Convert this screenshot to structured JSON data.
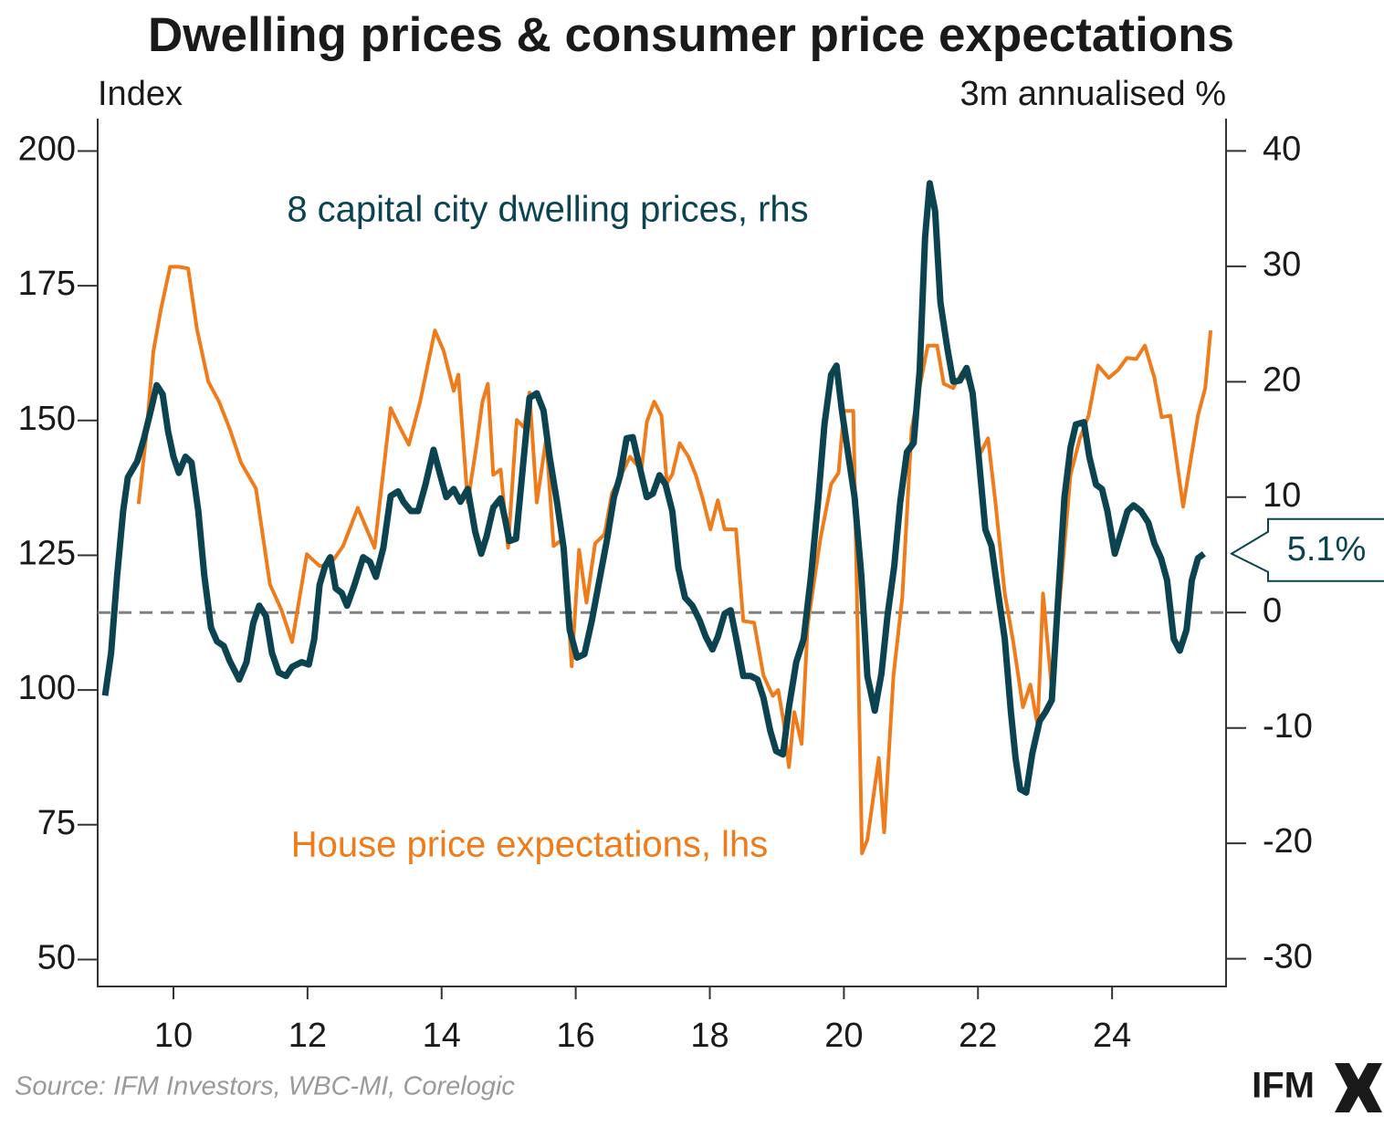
{
  "chart_data": {
    "type": "line",
    "title": "Dwelling prices & consumer price expectations",
    "ylabel": "Index",
    "y2label": "3m annualised %",
    "source": "Source: IFM Investors, WBC-MI, Corelogic",
    "brand": "IFM",
    "xlim": [
      8.87,
      25.7
    ],
    "xticks": [
      10,
      12,
      14,
      16,
      18,
      20,
      22,
      24
    ],
    "ylim": [
      45,
      206
    ],
    "yticks": [
      50,
      75,
      100,
      125,
      150,
      175,
      200
    ],
    "y2lim": [
      -32.4,
      42.8
    ],
    "y2ticks": [
      -30,
      -20,
      -10,
      0,
      10,
      20,
      30,
      40
    ],
    "reference_line": {
      "axis": "y2",
      "value": 0,
      "color": "#808080"
    },
    "callout": {
      "value": 5.1,
      "label": "5.1%",
      "color": "#0b4450"
    },
    "series": [
      {
        "name": "House price expectations, lhs",
        "color": "#f07b1a",
        "axis": "y",
        "x": [
          9.48,
          9.59,
          9.7,
          9.81,
          9.95,
          10.08,
          10.22,
          10.35,
          10.52,
          10.68,
          10.84,
          11.01,
          11.23,
          11.44,
          11.61,
          11.77,
          11.99,
          12.18,
          12.34,
          12.53,
          12.75,
          13.0,
          13.24,
          13.38,
          13.51,
          13.68,
          13.9,
          14.03,
          14.18,
          14.25,
          14.39,
          14.52,
          14.61,
          14.69,
          14.77,
          14.88,
          14.99,
          15.12,
          15.23,
          15.31,
          15.42,
          15.56,
          15.67,
          15.82,
          15.94,
          16.05,
          16.16,
          16.29,
          16.43,
          16.54,
          16.68,
          16.81,
          16.98,
          17.06,
          17.17,
          17.28,
          17.36,
          17.44,
          17.55,
          17.68,
          17.79,
          17.9,
          18.01,
          18.12,
          18.22,
          18.39,
          18.5,
          18.66,
          18.8,
          18.94,
          19.02,
          19.1,
          19.18,
          19.26,
          19.37,
          19.46,
          19.65,
          19.81,
          19.92,
          20.0,
          20.14,
          20.27,
          20.35,
          20.52,
          20.6,
          20.74,
          20.87,
          21.01,
          21.14,
          21.25,
          21.39,
          21.49,
          21.63,
          21.76,
          21.9,
          22.01,
          22.15,
          22.26,
          22.4,
          22.53,
          22.67,
          22.78,
          22.89,
          22.97,
          23.1,
          23.24,
          23.38,
          23.52,
          23.65,
          23.79,
          23.95,
          24.09,
          24.22,
          24.36,
          24.49,
          24.63,
          24.74,
          24.87,
          25.06,
          25.17,
          25.28,
          25.39,
          25.47
        ],
        "values": [
          134.5,
          146.7,
          162.8,
          170.4,
          178.5,
          178.5,
          178.2,
          167.0,
          157.2,
          153.5,
          148.4,
          142.1,
          137.4,
          119.6,
          114.9,
          108.9,
          125.2,
          123.0,
          123.3,
          126.7,
          133.8,
          126.4,
          152.3,
          148.7,
          145.5,
          153.5,
          166.7,
          162.9,
          155.5,
          158.5,
          134.8,
          145.3,
          153.5,
          156.8,
          139.9,
          140.9,
          126.4,
          150.1,
          148.7,
          155.2,
          134.8,
          146.7,
          126.7,
          128.1,
          104.4,
          126.0,
          116.2,
          127.2,
          128.9,
          136.5,
          139.9,
          143.3,
          140.8,
          149.7,
          153.5,
          150.9,
          138.3,
          140.0,
          145.8,
          143.3,
          139.9,
          135.2,
          129.8,
          135.2,
          129.8,
          129.8,
          112.8,
          112.5,
          102.7,
          98.9,
          100.0,
          94.2,
          85.7,
          95.9,
          90.0,
          112.0,
          128.1,
          138.2,
          140.3,
          151.8,
          151.8,
          69.7,
          72.2,
          87.4,
          73.6,
          102.7,
          117.1,
          148.4,
          156.8,
          163.9,
          163.9,
          156.8,
          156.0,
          158.9,
          156.8,
          143.3,
          146.7,
          134.8,
          117.9,
          108.6,
          96.8,
          101.0,
          93.4,
          117.9,
          100.2,
          119.6,
          139.9,
          146.7,
          150.9,
          160.2,
          157.9,
          159.4,
          161.6,
          161.4,
          163.9,
          158.0,
          150.6,
          150.9,
          134.0,
          142.5,
          150.9,
          156.0,
          166.7
        ]
      },
      {
        "name": "8 capital city dwelling prices, rhs",
        "color": "#0b4450",
        "axis": "y2",
        "x": [
          8.98,
          9.07,
          9.16,
          9.25,
          9.32,
          9.46,
          9.56,
          9.67,
          9.75,
          9.84,
          9.92,
          10.0,
          10.08,
          10.18,
          10.27,
          10.37,
          10.46,
          10.56,
          10.65,
          10.75,
          10.84,
          10.98,
          11.09,
          11.19,
          11.28,
          11.38,
          11.47,
          11.57,
          11.68,
          11.77,
          11.91,
          12.02,
          12.1,
          12.18,
          12.26,
          12.34,
          12.42,
          12.51,
          12.59,
          12.7,
          12.83,
          12.93,
          13.02,
          13.13,
          13.24,
          13.35,
          13.43,
          13.54,
          13.65,
          13.76,
          13.88,
          13.98,
          14.07,
          14.18,
          14.28,
          14.39,
          14.5,
          14.59,
          14.67,
          14.77,
          14.88,
          14.95,
          15.01,
          15.11,
          15.2,
          15.31,
          15.42,
          15.52,
          15.61,
          15.72,
          15.82,
          15.91,
          16.02,
          16.13,
          16.24,
          16.34,
          16.47,
          16.57,
          16.66,
          16.76,
          16.85,
          16.95,
          17.06,
          17.15,
          17.25,
          17.34,
          17.44,
          17.53,
          17.63,
          17.74,
          17.85,
          17.94,
          18.04,
          18.12,
          18.22,
          18.31,
          18.41,
          18.5,
          18.61,
          18.71,
          18.8,
          18.9,
          18.99,
          19.09,
          19.18,
          19.29,
          19.4,
          19.51,
          19.62,
          19.71,
          19.81,
          19.89,
          19.97,
          20.07,
          20.16,
          20.26,
          20.35,
          20.46,
          20.56,
          20.65,
          20.75,
          20.84,
          20.94,
          21.04,
          21.13,
          21.21,
          21.28,
          21.36,
          21.44,
          21.54,
          21.63,
          21.73,
          21.83,
          21.92,
          22.01,
          22.11,
          22.2,
          22.3,
          22.4,
          22.49,
          22.56,
          22.63,
          22.72,
          22.81,
          22.92,
          23.01,
          23.1,
          23.2,
          23.29,
          23.38,
          23.46,
          23.58,
          23.66,
          23.76,
          23.85,
          23.93,
          24.04,
          24.14,
          24.23,
          24.32,
          24.43,
          24.54,
          24.63,
          24.73,
          24.82,
          24.92,
          25.01,
          25.11,
          25.19,
          25.28,
          25.37
        ],
        "values": [
          -7.2,
          -3.5,
          3.2,
          8.8,
          11.7,
          13.1,
          15.1,
          17.7,
          19.7,
          18.9,
          15.7,
          13.5,
          12.1,
          13.5,
          13.0,
          8.8,
          3.2,
          -1.3,
          -2.5,
          -2.9,
          -4.2,
          -5.8,
          -4.3,
          -0.9,
          0.6,
          -0.3,
          -3.5,
          -5.2,
          -5.5,
          -4.7,
          -4.3,
          -4.5,
          -2.3,
          2.4,
          4.0,
          4.8,
          2.1,
          1.7,
          0.6,
          2.4,
          4.8,
          4.4,
          3.1,
          5.6,
          10.1,
          10.5,
          9.6,
          8.8,
          8.8,
          11.1,
          14.1,
          11.9,
          10.0,
          10.7,
          9.6,
          10.7,
          7.0,
          5.1,
          6.6,
          9.1,
          9.9,
          8.0,
          6.2,
          6.4,
          11.9,
          18.6,
          19.0,
          17.5,
          13.5,
          9.6,
          5.6,
          -1.5,
          -3.9,
          -3.6,
          -0.7,
          2.4,
          6.4,
          10.0,
          11.8,
          15.1,
          15.2,
          12.7,
          10.0,
          10.3,
          11.9,
          11.1,
          8.8,
          3.9,
          1.3,
          0.6,
          -0.7,
          -2.1,
          -3.2,
          -2.1,
          -0.1,
          0.2,
          -2.7,
          -5.5,
          -5.5,
          -5.8,
          -7.4,
          -10.2,
          -12.0,
          -12.3,
          -8.2,
          -4.3,
          -2.3,
          3.2,
          10.0,
          16.3,
          20.6,
          21.4,
          17.5,
          13.5,
          10.0,
          3.2,
          -5.5,
          -8.5,
          -5.3,
          -0.3,
          4.0,
          9.6,
          13.9,
          14.7,
          21.0,
          32.5,
          37.2,
          34.8,
          26.9,
          23.0,
          20.0,
          20.1,
          21.2,
          19.0,
          13.5,
          7.2,
          5.8,
          1.7,
          -2.3,
          -8.6,
          -12.6,
          -15.3,
          -15.6,
          -12.2,
          -9.4,
          -8.6,
          -7.6,
          1.7,
          10.0,
          14.3,
          16.3,
          16.5,
          13.5,
          11.1,
          10.7,
          8.8,
          5.1,
          7.0,
          8.8,
          9.3,
          8.8,
          7.8,
          6.0,
          4.7,
          2.8,
          -2.3,
          -3.3,
          -1.5,
          2.8,
          4.7,
          5.1
        ]
      }
    ]
  }
}
